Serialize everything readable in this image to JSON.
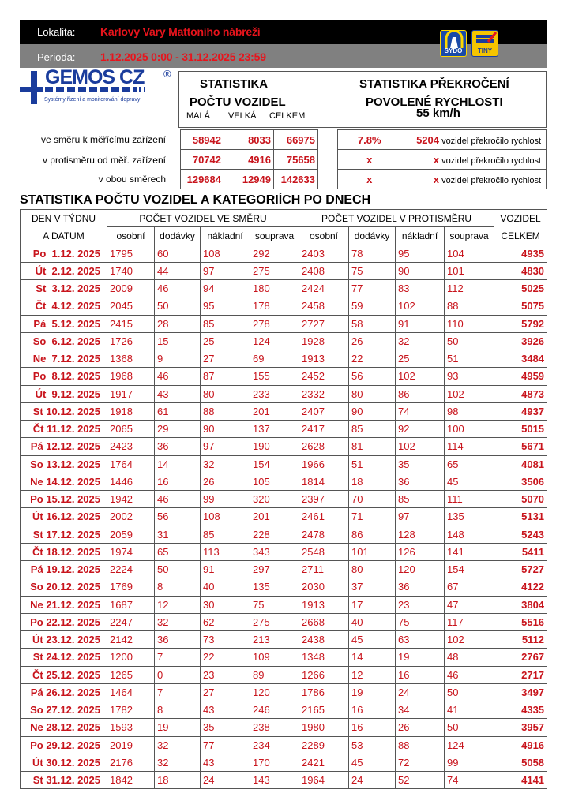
{
  "header": {
    "location_label": "Lokalita:",
    "location": "Karlovy Vary Mattoniho nábreží",
    "period_label": "Perioda:",
    "period": "1.12.2025 0:00 - 31.12.2025 23:59",
    "logos": [
      "SYDO",
      "TINY"
    ]
  },
  "company": {
    "name": "GEMOS CZ",
    "registered": "®",
    "tagline": "Systémy řízení a monitorování dopravy"
  },
  "stats": {
    "title1": "STATISTIKA",
    "title2": "POČTU VOZIDEL",
    "cols": [
      "MALÁ",
      "VELKÁ",
      "CELKEM"
    ],
    "speed_title1": "STATISTIKA PŘEKROČENÍ",
    "speed_title2": "POVOLENÉ RYCHLOSTI",
    "speed_limit": "55 km/h",
    "rows": [
      {
        "label": "ve směru k měřícímu zařízení",
        "values": [
          "58942",
          "8033",
          "66975"
        ],
        "pct": "7.8%",
        "count": "5204",
        "text": "vozidel překročilo rychlost"
      },
      {
        "label": "v protisměru od měř. zařízení",
        "values": [
          "70742",
          "4916",
          "75658"
        ],
        "pct": "x",
        "count": "x",
        "text": "vozidel překročilo rychlost"
      },
      {
        "label": "v obou směrech",
        "values": [
          "129684",
          "12949",
          "142633"
        ],
        "pct": "x",
        "count": "x",
        "text": "vozidel překročilo rychlost"
      }
    ]
  },
  "daily": {
    "title": "STATISTIKA POČTU VOZIDEL A KATEGORIÍCH PO DNECH",
    "col_day1": "DEN V TÝDNU",
    "col_day2": "A DATUM",
    "group_dir": "POČET VOZIDEL VE SMĚRU",
    "group_opp": "POČET VOZIDEL V PROTISMĚRU",
    "col_total1": "VOZIDEL",
    "col_total2": "CELKEM",
    "subcols": [
      "osobní",
      "dodávky",
      "nákladní",
      "souprava",
      "osobní",
      "dodávky",
      "nákladní",
      "souprava"
    ],
    "rows": [
      [
        "Po  1.12. 2025",
        "1795",
        "60",
        "108",
        "292",
        "2403",
        "78",
        "95",
        "104",
        "4935"
      ],
      [
        "Út  2.12. 2025",
        "1740",
        "44",
        "97",
        "275",
        "2408",
        "75",
        "90",
        "101",
        "4830"
      ],
      [
        "St  3.12. 2025",
        "2009",
        "46",
        "94",
        "180",
        "2424",
        "77",
        "83",
        "112",
        "5025"
      ],
      [
        "Čt  4.12. 2025",
        "2045",
        "50",
        "95",
        "178",
        "2458",
        "59",
        "102",
        "88",
        "5075"
      ],
      [
        "Pá  5.12. 2025",
        "2415",
        "28",
        "85",
        "278",
        "2727",
        "58",
        "91",
        "110",
        "5792"
      ],
      [
        "So  6.12. 2025",
        "1726",
        "15",
        "25",
        "124",
        "1928",
        "26",
        "32",
        "50",
        "3926"
      ],
      [
        "Ne  7.12. 2025",
        "1368",
        "9",
        "27",
        "69",
        "1913",
        "22",
        "25",
        "51",
        "3484"
      ],
      [
        "Po  8.12. 2025",
        "1968",
        "46",
        "87",
        "155",
        "2452",
        "56",
        "102",
        "93",
        "4959"
      ],
      [
        "Út  9.12. 2025",
        "1917",
        "43",
        "80",
        "233",
        "2332",
        "80",
        "86",
        "102",
        "4873"
      ],
      [
        "St 10.12. 2025",
        "1918",
        "61",
        "88",
        "201",
        "2407",
        "90",
        "74",
        "98",
        "4937"
      ],
      [
        "Čt 11.12. 2025",
        "2065",
        "29",
        "90",
        "137",
        "2417",
        "85",
        "92",
        "100",
        "5015"
      ],
      [
        "Pá 12.12. 2025",
        "2423",
        "36",
        "97",
        "190",
        "2628",
        "81",
        "102",
        "114",
        "5671"
      ],
      [
        "So 13.12. 2025",
        "1764",
        "14",
        "32",
        "154",
        "1966",
        "51",
        "35",
        "65",
        "4081"
      ],
      [
        "Ne 14.12. 2025",
        "1446",
        "16",
        "26",
        "105",
        "1814",
        "18",
        "36",
        "45",
        "3506"
      ],
      [
        "Po 15.12. 2025",
        "1942",
        "46",
        "99",
        "320",
        "2397",
        "70",
        "85",
        "111",
        "5070"
      ],
      [
        "Út 16.12. 2025",
        "2002",
        "56",
        "108",
        "201",
        "2461",
        "71",
        "97",
        "135",
        "5131"
      ],
      [
        "St 17.12. 2025",
        "2059",
        "31",
        "85",
        "228",
        "2478",
        "86",
        "128",
        "148",
        "5243"
      ],
      [
        "Čt 18.12. 2025",
        "1974",
        "65",
        "113",
        "343",
        "2548",
        "101",
        "126",
        "141",
        "5411"
      ],
      [
        "Pá 19.12. 2025",
        "2224",
        "50",
        "91",
        "297",
        "2711",
        "80",
        "120",
        "154",
        "5727"
      ],
      [
        "So 20.12. 2025",
        "1769",
        "8",
        "40",
        "135",
        "2030",
        "37",
        "36",
        "67",
        "4122"
      ],
      [
        "Ne 21.12. 2025",
        "1687",
        "12",
        "30",
        "75",
        "1913",
        "17",
        "23",
        "47",
        "3804"
      ],
      [
        "Po 22.12. 2025",
        "2247",
        "32",
        "62",
        "275",
        "2668",
        "40",
        "75",
        "117",
        "5516"
      ],
      [
        "Út 23.12. 2025",
        "2142",
        "36",
        "73",
        "213",
        "2438",
        "45",
        "63",
        "102",
        "5112"
      ],
      [
        "St 24.12. 2025",
        "1200",
        "7",
        "22",
        "109",
        "1348",
        "14",
        "19",
        "48",
        "2767"
      ],
      [
        "Čt 25.12. 2025",
        "1265",
        "0",
        "23",
        "89",
        "1266",
        "12",
        "16",
        "46",
        "2717"
      ],
      [
        "Pá 26.12. 2025",
        "1464",
        "7",
        "27",
        "120",
        "1786",
        "19",
        "24",
        "50",
        "3497"
      ],
      [
        "So 27.12. 2025",
        "1782",
        "8",
        "43",
        "246",
        "2165",
        "16",
        "34",
        "41",
        "4335"
      ],
      [
        "Ne 28.12. 2025",
        "1593",
        "19",
        "35",
        "238",
        "1980",
        "16",
        "26",
        "50",
        "3957"
      ],
      [
        "Po 29.12. 2025",
        "2019",
        "32",
        "77",
        "234",
        "2289",
        "53",
        "88",
        "124",
        "4916"
      ],
      [
        "Út 30.12. 2025",
        "2176",
        "32",
        "43",
        "170",
        "2421",
        "45",
        "72",
        "99",
        "5058"
      ],
      [
        "St 31.12. 2025",
        "1842",
        "18",
        "24",
        "143",
        "1964",
        "24",
        "52",
        "74",
        "4141"
      ]
    ]
  },
  "colors": {
    "accent_red": "#c8141c",
    "header_black": "#000000",
    "header_gray": "#808080",
    "logo_blue": "#1a3c9c"
  }
}
